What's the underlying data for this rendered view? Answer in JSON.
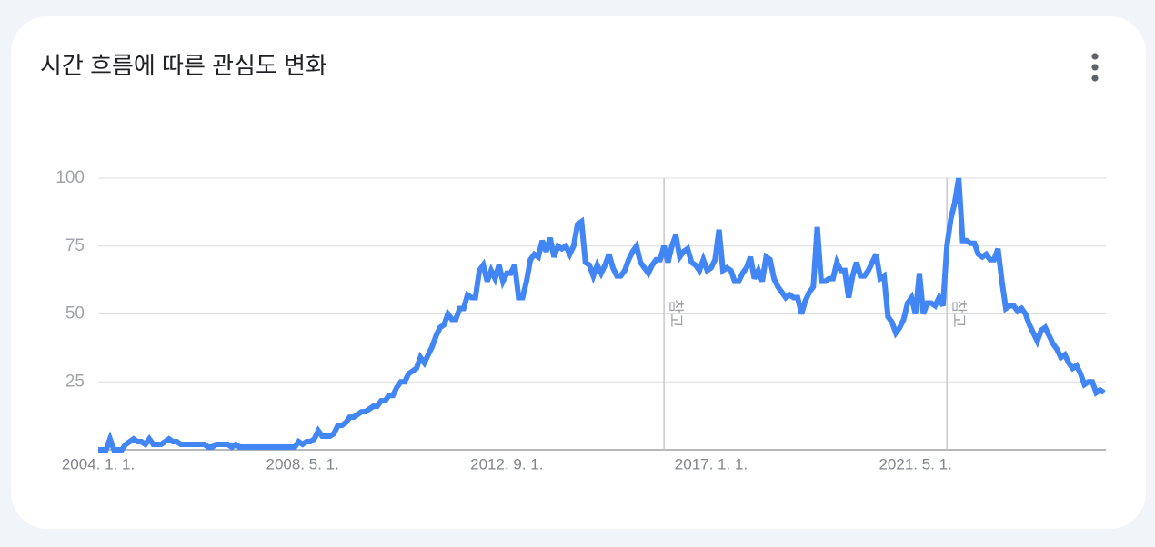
{
  "chart_data": {
    "type": "line",
    "title": "시간 흐름에 따른 관심도 변화",
    "categories": [
      "2004. 1. 1.",
      null,
      null,
      null,
      null,
      null,
      null,
      null,
      null,
      null,
      null,
      null,
      null,
      null,
      null,
      null,
      null,
      null,
      null,
      null,
      null,
      null,
      null,
      null,
      null,
      null,
      null,
      null,
      null,
      null,
      null,
      null,
      null,
      null,
      null,
      null,
      null,
      null,
      null,
      null,
      null,
      null,
      null,
      null,
      null,
      null,
      null,
      null,
      null,
      null,
      null,
      null,
      "2008. 5. 1.",
      null,
      null,
      null,
      null,
      null,
      null,
      null,
      null,
      null,
      null,
      null,
      null,
      null,
      null,
      null,
      null,
      null,
      null,
      null,
      null,
      null,
      null,
      null,
      null,
      null,
      null,
      null,
      null,
      null,
      null,
      null,
      null,
      null,
      null,
      null,
      null,
      null,
      null,
      null,
      null,
      null,
      null,
      null,
      null,
      null,
      null,
      null,
      null,
      null,
      null,
      null,
      "2012. 9. 1.",
      null,
      null,
      null,
      null,
      null,
      null,
      null,
      null,
      null,
      null,
      null,
      null,
      null,
      null,
      null,
      null,
      null,
      null,
      null,
      null,
      null,
      null,
      null,
      null,
      null,
      null,
      null,
      null,
      null,
      null,
      null,
      null,
      null,
      null,
      null,
      null,
      null,
      null,
      null,
      null,
      null,
      null,
      null,
      null,
      null,
      null,
      null,
      null,
      null,
      null,
      null,
      "2017. 1. 1.",
      null,
      null,
      null,
      null,
      null,
      null,
      null,
      null,
      null,
      null,
      null,
      null,
      null,
      null,
      null,
      null,
      null,
      null,
      null,
      null,
      null,
      null,
      null,
      null,
      null,
      null,
      null,
      null,
      null,
      null,
      null,
      null,
      null,
      null,
      null,
      null,
      null,
      null,
      null,
      null,
      null,
      null,
      null,
      null,
      null,
      null,
      null,
      null,
      null,
      null,
      null,
      "2021. 5. 1.",
      null,
      null,
      null,
      null,
      null,
      null,
      null,
      null,
      null,
      null,
      null,
      null,
      null,
      null,
      null,
      null,
      null,
      null,
      null,
      null,
      null,
      null,
      null,
      null,
      null,
      null,
      null,
      null,
      null,
      null,
      null,
      null,
      null,
      null,
      null,
      null,
      null,
      null,
      null,
      null,
      null,
      null,
      null,
      null,
      null,
      null,
      null,
      null
    ],
    "series": [
      {
        "color": "#4285f4",
        "values": [
          0,
          0,
          0,
          4,
          0,
          0,
          0,
          2,
          3,
          4,
          3,
          3,
          2,
          4,
          2,
          2,
          2,
          3,
          4,
          3,
          3,
          2,
          2,
          2,
          2,
          2,
          2,
          2,
          1,
          1,
          2,
          2,
          2,
          2,
          1,
          2,
          1,
          1,
          1,
          1,
          1,
          1,
          1,
          1,
          1,
          1,
          1,
          1,
          1,
          1,
          1,
          3,
          2,
          3,
          3,
          4,
          7,
          5,
          5,
          5,
          6,
          9,
          9,
          10,
          12,
          12,
          13,
          14,
          14,
          15,
          16,
          16,
          18,
          18,
          20,
          20,
          23,
          25,
          25,
          28,
          29,
          30,
          34,
          32,
          35,
          38,
          42,
          45,
          46,
          50,
          48,
          48,
          52,
          52,
          57,
          56,
          56,
          66,
          68,
          62,
          66,
          63,
          68,
          62,
          65,
          65,
          68,
          56,
          56,
          62,
          70,
          72,
          71,
          77,
          73,
          78,
          71,
          75,
          74,
          75,
          72,
          75,
          83,
          84,
          69,
          68,
          64,
          68,
          65,
          68,
          72,
          67,
          64,
          64,
          66,
          70,
          73,
          75,
          69,
          67,
          65,
          68,
          70,
          70,
          75,
          69,
          75,
          79,
          71,
          73,
          74,
          69,
          68,
          66,
          70,
          66,
          67,
          70,
          81,
          66,
          67,
          66,
          62,
          62,
          65,
          67,
          71,
          63,
          66,
          62,
          71,
          70,
          63,
          60,
          58,
          56,
          57,
          56,
          56,
          50,
          55,
          58,
          60,
          82,
          62,
          62,
          63,
          63,
          69,
          66,
          66,
          56,
          64,
          69,
          64,
          64,
          66,
          69,
          72,
          63,
          64,
          49,
          47,
          43,
          45,
          48,
          54,
          56,
          50,
          65,
          50,
          54,
          54,
          53,
          56,
          53,
          75,
          85,
          91,
          100,
          77,
          77,
          76,
          76,
          72,
          71,
          72,
          70,
          70,
          74,
          62,
          52,
          53,
          53,
          51,
          52,
          50,
          46,
          43,
          40,
          44,
          45,
          42,
          39,
          37,
          34,
          35,
          32,
          30,
          31,
          28,
          24,
          25,
          25,
          21,
          22,
          21
        ]
      }
    ],
    "ylim": [
      0,
      100
    ],
    "yticks": [
      25,
      50,
      75,
      100
    ],
    "grid": true,
    "annotations": [
      {
        "text": "참고",
        "at": 144
      },
      {
        "text": "참고",
        "at": 216
      }
    ]
  }
}
